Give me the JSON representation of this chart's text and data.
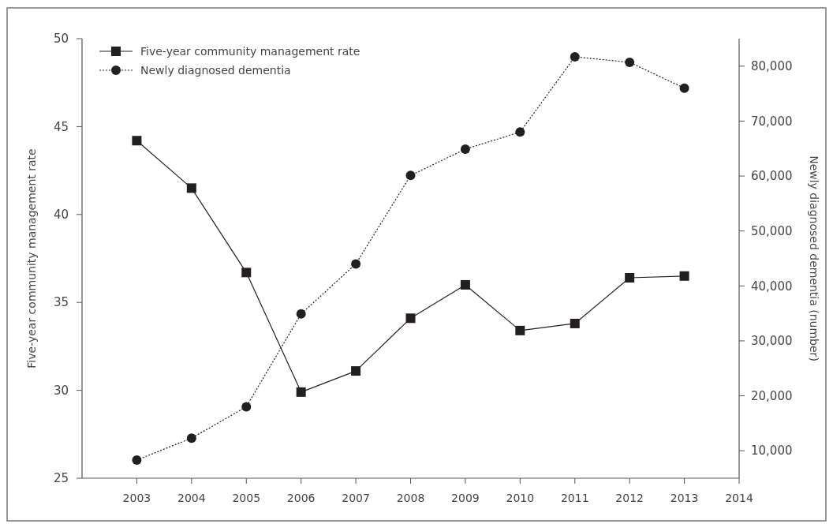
{
  "chart_data": {
    "type": "line",
    "ylabel": "Five-year community management rate",
    "y2label": "Newly diagnosed dementia (number)",
    "x": [
      2003,
      2004,
      2005,
      2006,
      2007,
      2008,
      2009,
      2010,
      2011,
      2012,
      2013
    ],
    "xlim": [
      2002,
      2014
    ],
    "xticks": [
      2003,
      2004,
      2005,
      2006,
      2007,
      2008,
      2009,
      2010,
      2011,
      2012,
      2013,
      2014
    ],
    "ylim": [
      25,
      50
    ],
    "yticks": [
      25,
      30,
      35,
      40,
      45,
      50
    ],
    "y2lim": [
      5000,
      85000
    ],
    "y2ticks": [
      {
        "value": 10000,
        "label": "10,000"
      },
      {
        "value": 20000,
        "label": "20,000"
      },
      {
        "value": 30000,
        "label": "30,000"
      },
      {
        "value": 40000,
        "label": "40,000"
      },
      {
        "value": 50000,
        "label": "50,000"
      },
      {
        "value": 60000,
        "label": "60,000"
      },
      {
        "value": 70000,
        "label": "70,000"
      },
      {
        "value": 80000,
        "label": "80,000"
      }
    ],
    "series": [
      {
        "name": "Five-year community management rate",
        "color": "#231f20",
        "marker": "square",
        "line_style": "solid",
        "values": [
          44.2,
          41.5,
          36.7,
          29.9,
          31.1,
          34.1,
          36.0,
          33.4,
          33.8,
          36.4,
          36.5
        ]
      },
      {
        "name": "Newly diagnosed dementia",
        "color": "#231f20",
        "marker": "circle",
        "line_style": "dotted",
        "axis": "y2",
        "values": [
          8300,
          12300,
          18000,
          34900,
          44000,
          60100,
          64900,
          68000,
          81700,
          80700,
          76000
        ]
      }
    ],
    "legend": "top left",
    "grid": false
  }
}
